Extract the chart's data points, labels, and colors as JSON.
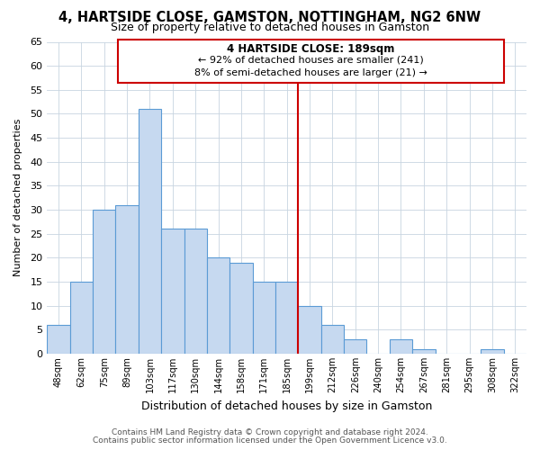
{
  "title": "4, HARTSIDE CLOSE, GAMSTON, NOTTINGHAM, NG2 6NW",
  "subtitle": "Size of property relative to detached houses in Gamston",
  "xlabel": "Distribution of detached houses by size in Gamston",
  "ylabel": "Number of detached properties",
  "bar_labels": [
    "48sqm",
    "62sqm",
    "75sqm",
    "89sqm",
    "103sqm",
    "117sqm",
    "130sqm",
    "144sqm",
    "158sqm",
    "171sqm",
    "185sqm",
    "199sqm",
    "212sqm",
    "226sqm",
    "240sqm",
    "254sqm",
    "267sqm",
    "281sqm",
    "295sqm",
    "308sqm",
    "322sqm"
  ],
  "bar_heights": [
    6,
    15,
    30,
    31,
    51,
    26,
    26,
    20,
    19,
    15,
    15,
    10,
    6,
    3,
    0,
    3,
    1,
    0,
    0,
    1,
    0
  ],
  "bar_color": "#c6d9f0",
  "bar_edge_color": "#5b9bd5",
  "ylim": [
    0,
    65
  ],
  "yticks": [
    0,
    5,
    10,
    15,
    20,
    25,
    30,
    35,
    40,
    45,
    50,
    55,
    60,
    65
  ],
  "vline_x": 10.5,
  "vline_color": "#cc0000",
  "annotation_title": "4 HARTSIDE CLOSE: 189sqm",
  "annotation_line1": "← 92% of detached houses are smaller (241)",
  "annotation_line2": "8% of semi-detached houses are larger (21) →",
  "footer1": "Contains HM Land Registry data © Crown copyright and database right 2024.",
  "footer2": "Contains public sector information licensed under the Open Government Licence v3.0.",
  "background_color": "#ffffff",
  "grid_color": "#c8d4e0"
}
